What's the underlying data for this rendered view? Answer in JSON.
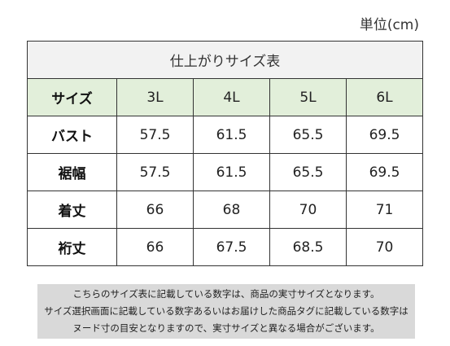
{
  "unit_label": "単位(cm)",
  "table": {
    "title": "仕上がりサイズ表",
    "header": [
      "サイズ",
      "3L",
      "4L",
      "5L",
      "6L"
    ],
    "rows": [
      {
        "label": "バスト",
        "values": [
          "57.5",
          "61.5",
          "65.5",
          "69.5"
        ]
      },
      {
        "label": "裾幅",
        "values": [
          "57.5",
          "61.5",
          "65.5",
          "69.5"
        ]
      },
      {
        "label": "着丈",
        "values": [
          "66",
          "68",
          "70",
          "71"
        ]
      },
      {
        "label": "裄丈",
        "values": [
          "66",
          "67.5",
          "68.5",
          "70"
        ]
      }
    ]
  },
  "note": {
    "lines": [
      "こちらのサイズ表に記載している数字は、商品の実寸サイズとなります。",
      "サイズ選択画面に記載している数字あるいはお届けした商品タグに記載している数字は",
      "ヌード寸の目安となりますので、実寸サイズと異なる場合がございます。"
    ]
  },
  "colors": {
    "header_bg": "#e2efda",
    "title_bg": "#f2f2f2",
    "note_bg": "#d9d9d9"
  }
}
